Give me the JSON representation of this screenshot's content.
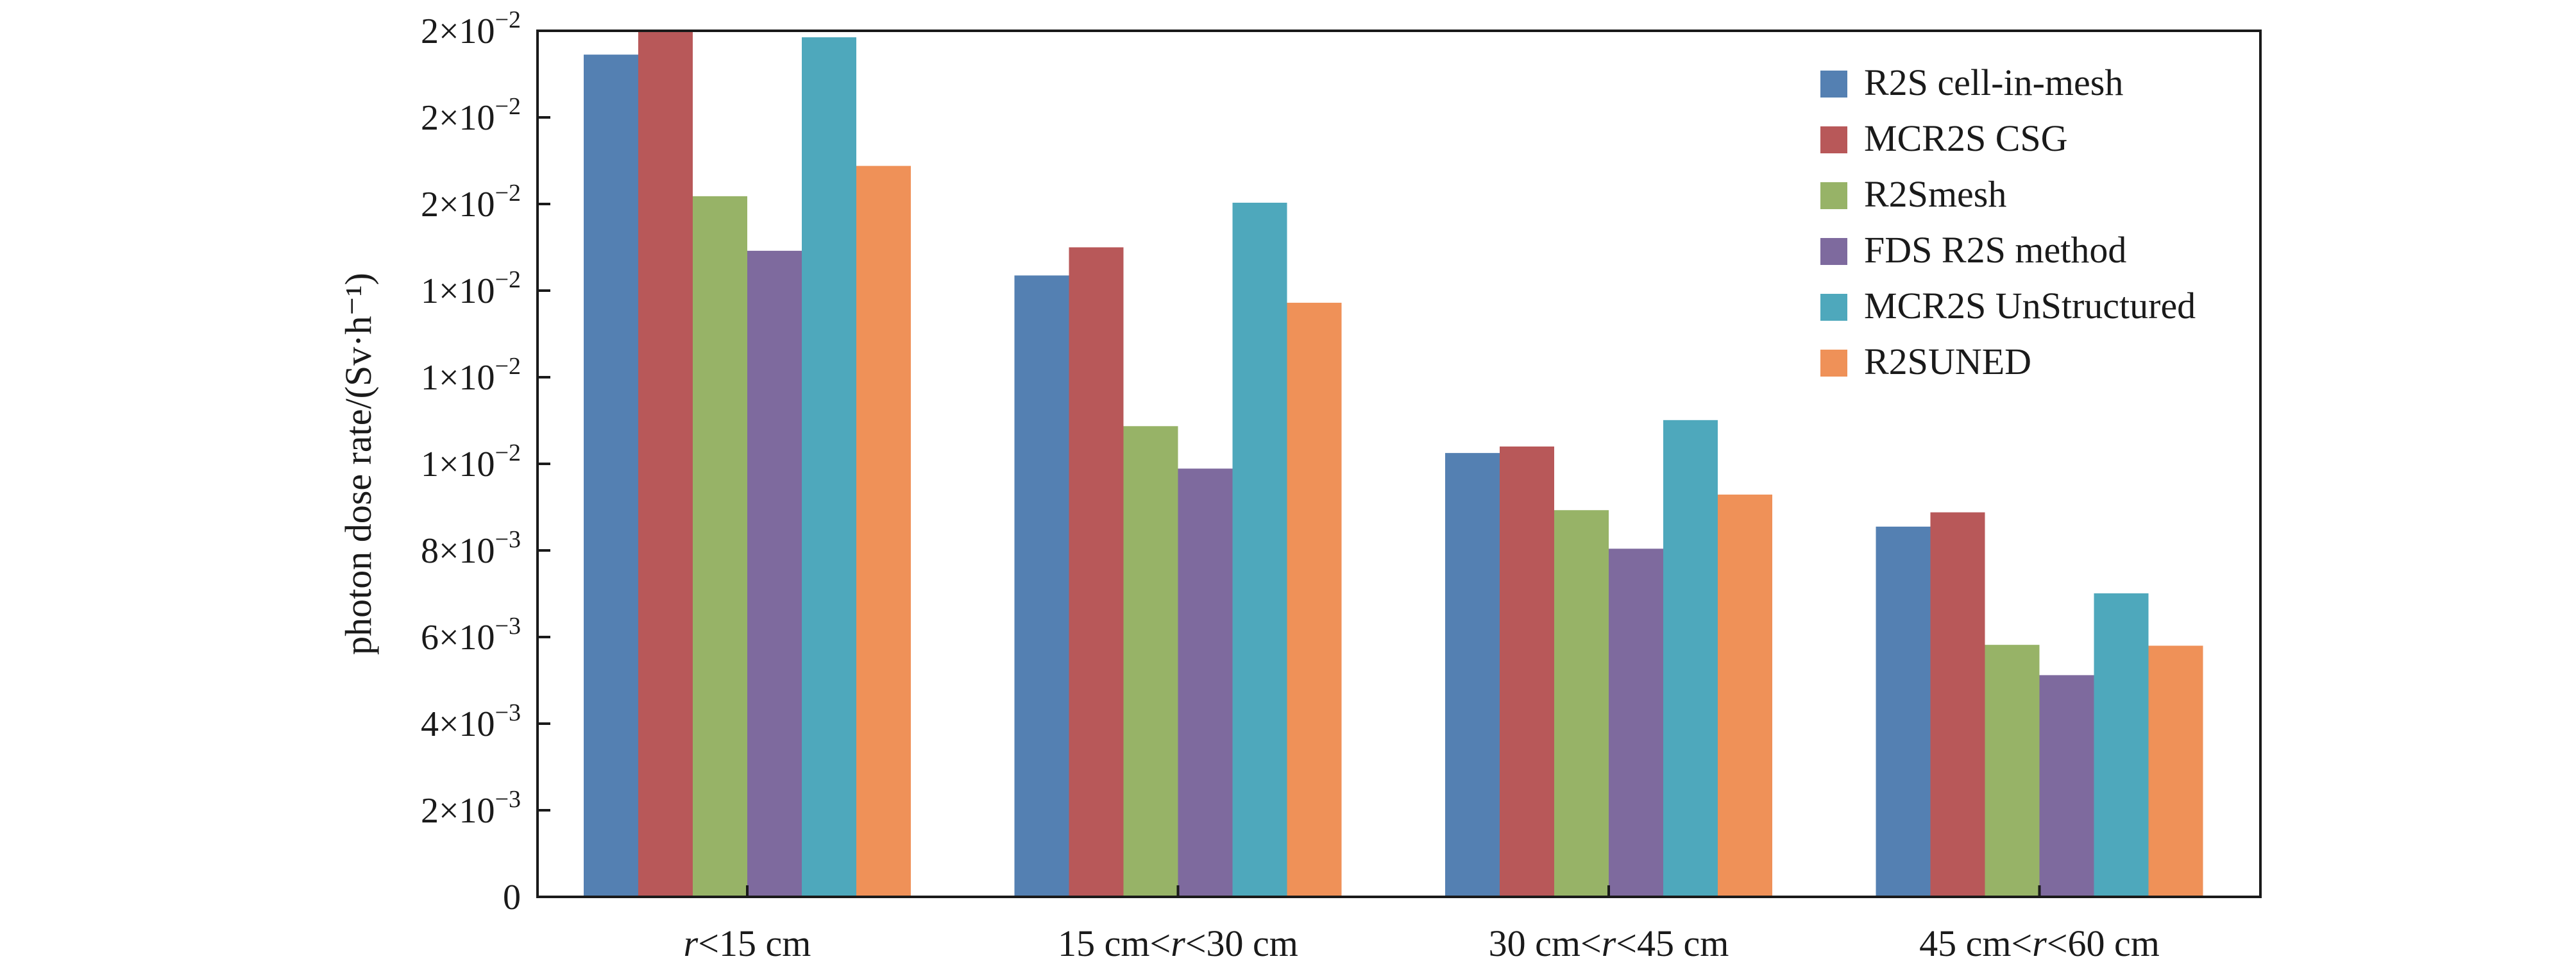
{
  "chart_data": {
    "type": "bar",
    "ylabel": "photon dose rate/(Sv·h⁻¹)",
    "xlabel": "",
    "ylim": [
      0,
      0.02
    ],
    "grid": false,
    "legend_position": "top-right",
    "categories": [
      {
        "pre": "",
        "italic": "r",
        "post": "<15 cm"
      },
      {
        "pre": "15 cm<",
        "italic": "r",
        "post": "<30 cm"
      },
      {
        "pre": "30 cm<",
        "italic": "r",
        "post": "<45 cm"
      },
      {
        "pre": "45 cm<",
        "italic": "r",
        "post": "<60 cm"
      }
    ],
    "y_ticks": [
      {
        "value": 0,
        "mant": "0",
        "exp": ""
      },
      {
        "value": 0.002,
        "mant": "2×10",
        "exp": "−3"
      },
      {
        "value": 0.004,
        "mant": "4×10",
        "exp": "−3"
      },
      {
        "value": 0.006,
        "mant": "6×10",
        "exp": "−3"
      },
      {
        "value": 0.008,
        "mant": "8×10",
        "exp": "−3"
      },
      {
        "value": 0.01,
        "mant": "1×10",
        "exp": "−2"
      },
      {
        "value": 0.012,
        "mant": "1×10",
        "exp": "−2"
      },
      {
        "value": 0.014,
        "mant": "1×10",
        "exp": "−2"
      },
      {
        "value": 0.016,
        "mant": "2×10",
        "exp": "−2"
      },
      {
        "value": 0.018,
        "mant": "2×10",
        "exp": "−2"
      },
      {
        "value": 0.02,
        "mant": "2×10",
        "exp": "−2"
      }
    ],
    "series": [
      {
        "name": "R2S cell-in-mesh",
        "color": "#5480b2",
        "values": [
          0.01945,
          0.01435,
          0.01025,
          0.00855
        ]
      },
      {
        "name": "MCR2S CSG",
        "color": "#b85859",
        "values": [
          0.02,
          0.015,
          0.0104,
          0.00888
        ]
      },
      {
        "name": "R2Smesh",
        "color": "#97b367",
        "values": [
          0.01618,
          0.01087,
          0.00893,
          0.00582
        ]
      },
      {
        "name": "FDS R2S method",
        "color": "#7e6a9e",
        "values": [
          0.01492,
          0.00989,
          0.00804,
          0.00512
        ]
      },
      {
        "name": "MCR2S UnStructured",
        "color": "#4ea8bc",
        "values": [
          0.01985,
          0.01603,
          0.01101,
          0.00701
        ]
      },
      {
        "name": "R2SUNED",
        "color": "#ef9158",
        "values": [
          0.01688,
          0.01372,
          0.00929,
          0.0058
        ]
      }
    ]
  }
}
